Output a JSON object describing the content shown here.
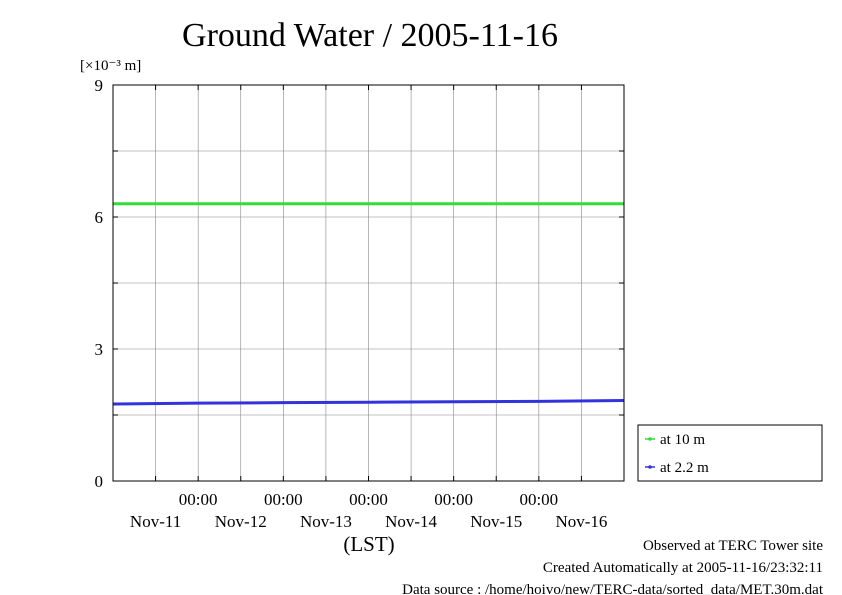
{
  "chart_data": {
    "type": "line",
    "title": "Ground Water / 2005-11-16",
    "ylabel": "[×10⁻³ m]",
    "xlabel": "(LST)",
    "ylim": [
      0,
      9
    ],
    "xlim": [
      0,
      6
    ],
    "yticks": [
      "0",
      "3",
      "6",
      "9"
    ],
    "ytick_values": [
      0,
      3,
      6,
      9
    ],
    "xticks": [
      {
        "time": "00:00",
        "date": "Nov-11"
      },
      {
        "time": "00:00",
        "date": "Nov-12"
      },
      {
        "time": "00:00",
        "date": "Nov-13"
      },
      {
        "time": "00:00",
        "date": "Nov-14"
      },
      {
        "time": "00:00",
        "date": "Nov-15"
      },
      {
        "time": "00:00",
        "date": "Nov-16"
      }
    ],
    "grid": true,
    "legend_position": "bottom-right",
    "series": [
      {
        "name": "at 10 m",
        "color": "#33dd33",
        "x": [
          0,
          1,
          2,
          3,
          4,
          5,
          6
        ],
        "values": [
          6.3,
          6.3,
          6.3,
          6.3,
          6.3,
          6.3,
          6.3
        ]
      },
      {
        "name": "at 2.2 m",
        "color": "#3333dd",
        "x": [
          0,
          1,
          2,
          3,
          4,
          5,
          6
        ],
        "values": [
          1.75,
          1.77,
          1.78,
          1.79,
          1.8,
          1.81,
          1.83
        ]
      }
    ]
  },
  "footer": {
    "observed": "Observed at TERC Tower site",
    "created": "Created Automatically at 2005-11-16/23:32:11",
    "source": "Data source : /home/hoivo/new/TERC-data/sorted_data/MET.30m.dat"
  }
}
